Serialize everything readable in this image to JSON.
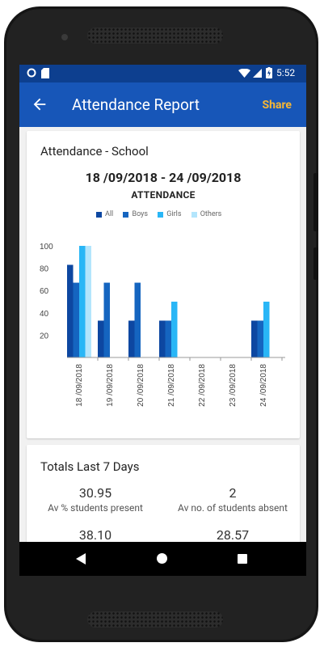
{
  "status_bar": {
    "time": "5:52",
    "icons": [
      "circle-icon",
      "sd-card-icon",
      "wifi-icon",
      "signal-icon",
      "battery-charging-icon"
    ]
  },
  "app_bar": {
    "title": "Attendance Report",
    "share_label": "Share",
    "back_icon": "arrow-back-icon"
  },
  "attendance_card": {
    "heading": "Attendance - School",
    "date_range": "18 /09/2018  - 24 /09/2018"
  },
  "chart_data": {
    "type": "bar",
    "title": "ATTENDANCE",
    "categories": [
      "18 /09/2018",
      "19 /09/2018",
      "20 /09/2018",
      "21 /09/2018",
      "22 /09/2018",
      "23 /09/2018",
      "24 /09/2018"
    ],
    "series": [
      {
        "name": "All",
        "color": "#0d47a1",
        "values": [
          83,
          33,
          33,
          33,
          0,
          0,
          33
        ]
      },
      {
        "name": "Boys",
        "color": "#1565c0",
        "values": [
          67,
          67,
          67,
          33,
          0,
          0,
          33
        ]
      },
      {
        "name": "Girls",
        "color": "#29b6f6",
        "values": [
          100,
          0,
          0,
          50,
          0,
          0,
          50
        ]
      },
      {
        "name": "Others",
        "color": "#b3e5fc",
        "values": [
          100,
          0,
          0,
          0,
          0,
          0,
          0
        ]
      }
    ],
    "yticks": [
      "20",
      "40",
      "60",
      "80",
      "100"
    ],
    "ylim": [
      0,
      100
    ],
    "legend_position": "top-center",
    "grid": false
  },
  "totals_card": {
    "heading": "Totals Last 7 Days",
    "stats": [
      {
        "value": "30.95",
        "label": "Av % students present"
      },
      {
        "value": "2",
        "label": "Av no. of students absent"
      },
      {
        "value": "38.10",
        "label": ""
      },
      {
        "value": "28.57",
        "label": ""
      }
    ]
  },
  "nav_bar": {
    "icons": [
      "nav-back-icon",
      "nav-home-icon",
      "nav-recents-icon"
    ]
  }
}
